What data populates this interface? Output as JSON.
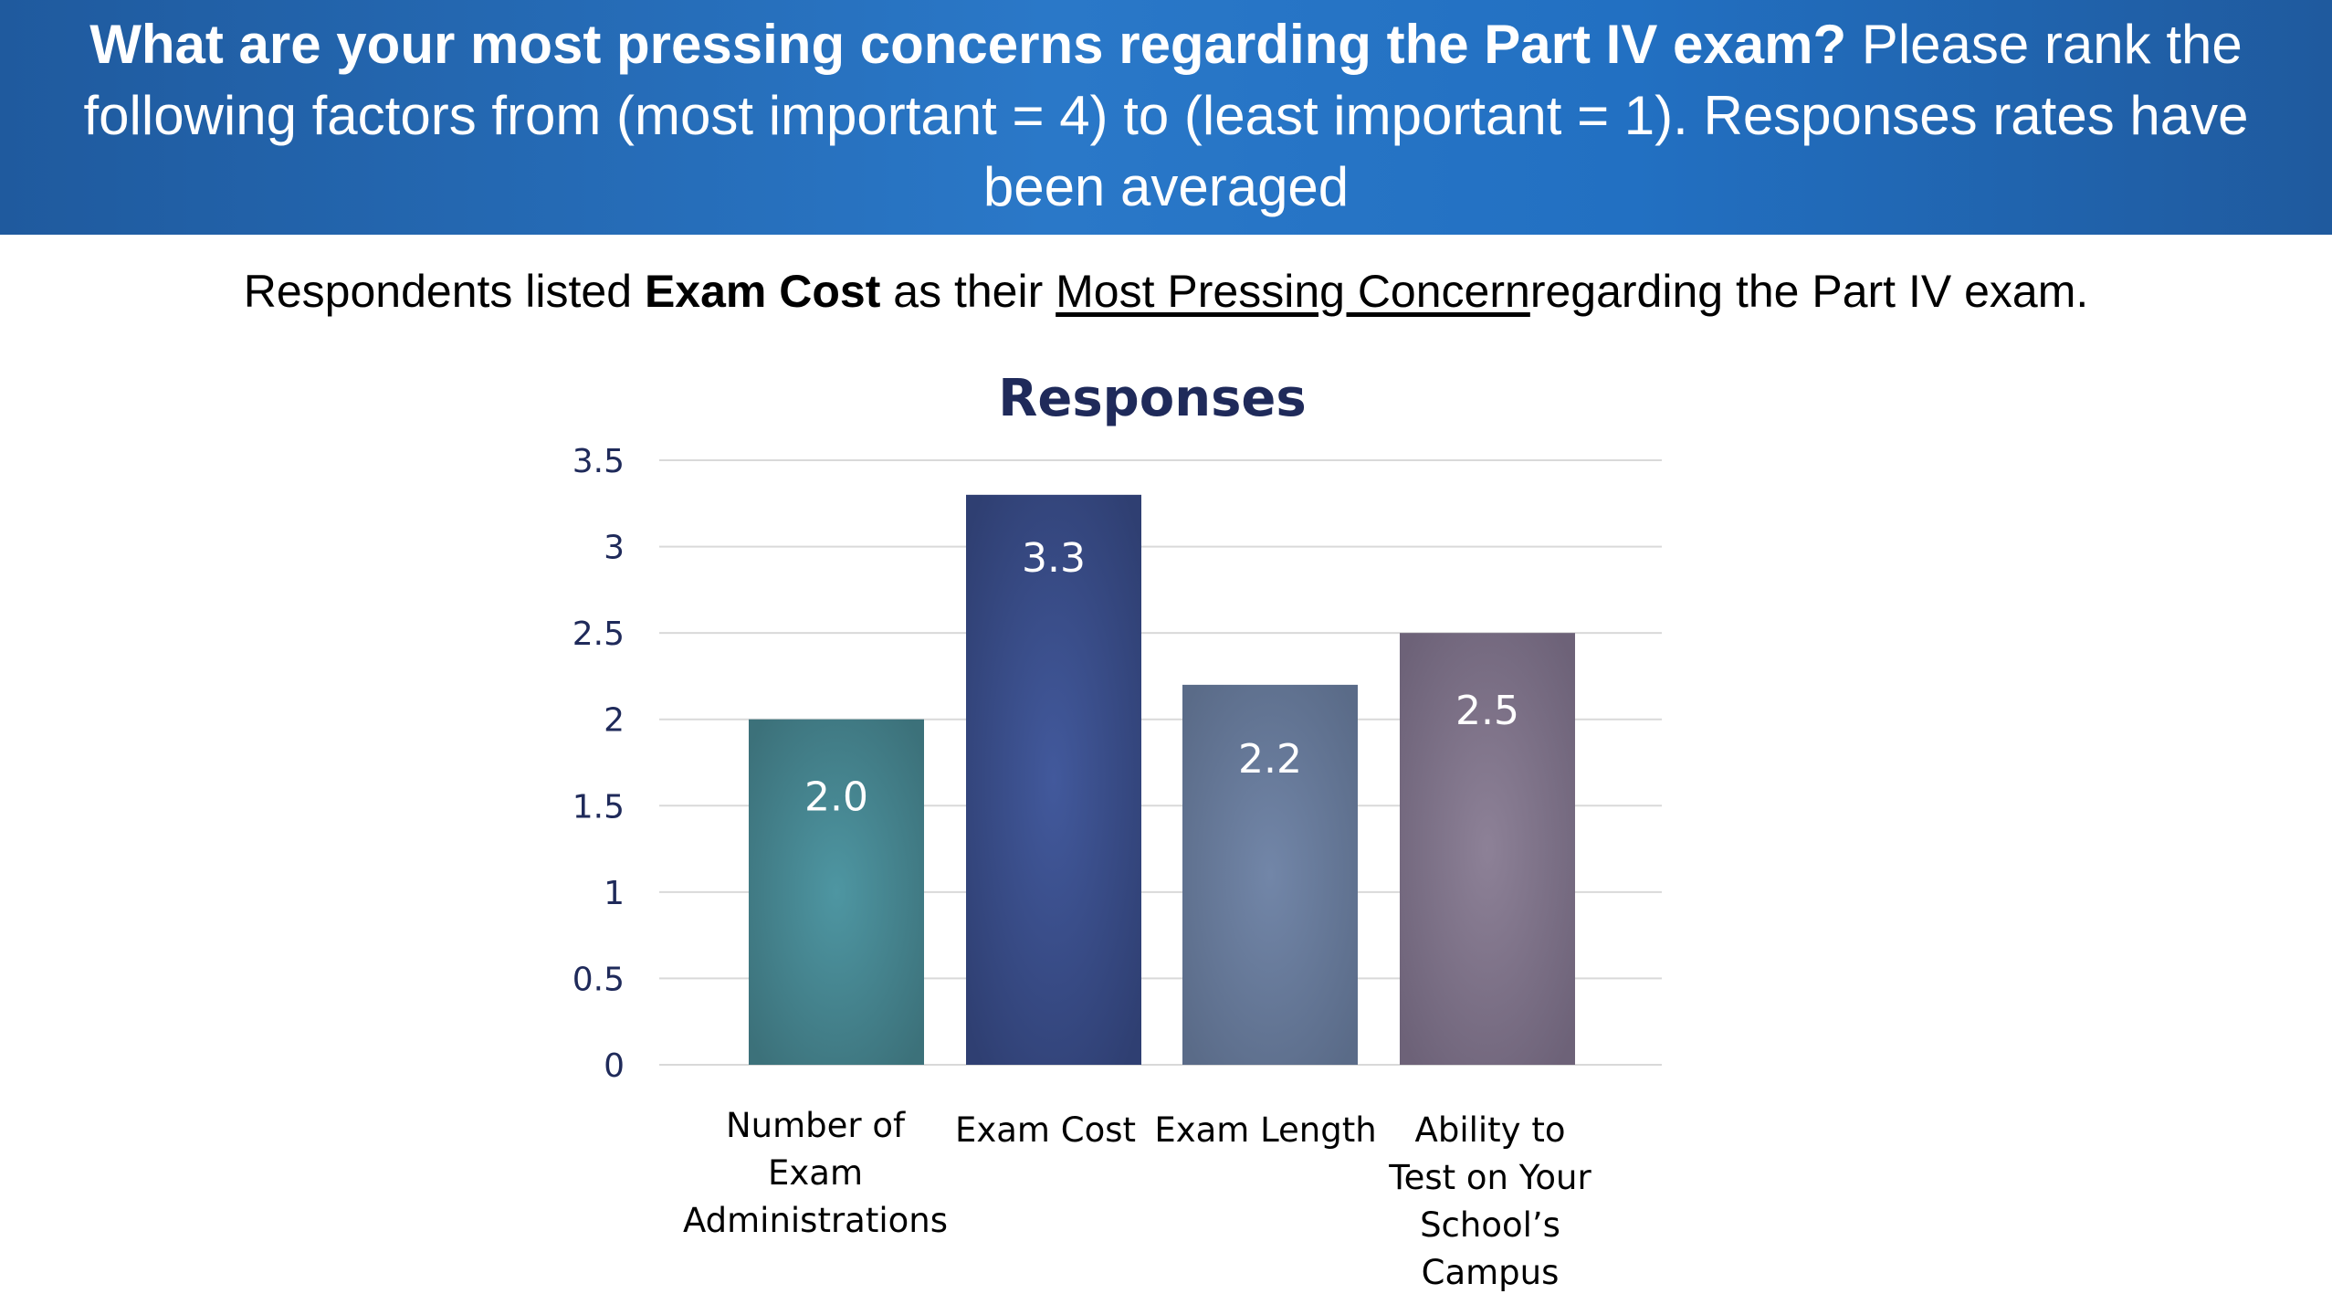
{
  "header": {
    "question_bold": "What are your most pressing concerns regarding the Part IV exam?",
    "question_rest": "Please rank the following factors from (most important = 4) to (least important = 1). Responses rates have been averaged"
  },
  "summary": {
    "prefix": "Respondents listed",
    "bold": "Exam Cost",
    "middle": "as their",
    "underlined": "Most Pressing Concern",
    "suffix": "regarding the Part IV exam."
  },
  "colors": {
    "banner": "#2a78c8",
    "title": "#1f2a5a",
    "tick": "#1f2a5a",
    "bar_teal": "#4a8f98",
    "bar_navy": "#3e5597",
    "bar_slate": "#7488aa",
    "bar_mauve": "#877b90"
  },
  "chart_data": {
    "type": "bar",
    "title": "Responses",
    "xlabel": "",
    "ylabel": "",
    "ylim": [
      0,
      3.5
    ],
    "yticks": [
      "0",
      "0.5",
      "1",
      "1.5",
      "2",
      "2.5",
      "3",
      "3.5"
    ],
    "grid": true,
    "categories": [
      [
        "Number of",
        "Exam",
        "Administrations"
      ],
      [
        "Exam Cost"
      ],
      [
        "Exam Length"
      ],
      [
        "Ability to",
        "Test on Your",
        "School’s",
        "Campus"
      ]
    ],
    "values": [
      2.0,
      3.3,
      2.2,
      2.5
    ],
    "data_labels": [
      "2.0",
      "3.3",
      "2.2",
      "2.5"
    ]
  }
}
